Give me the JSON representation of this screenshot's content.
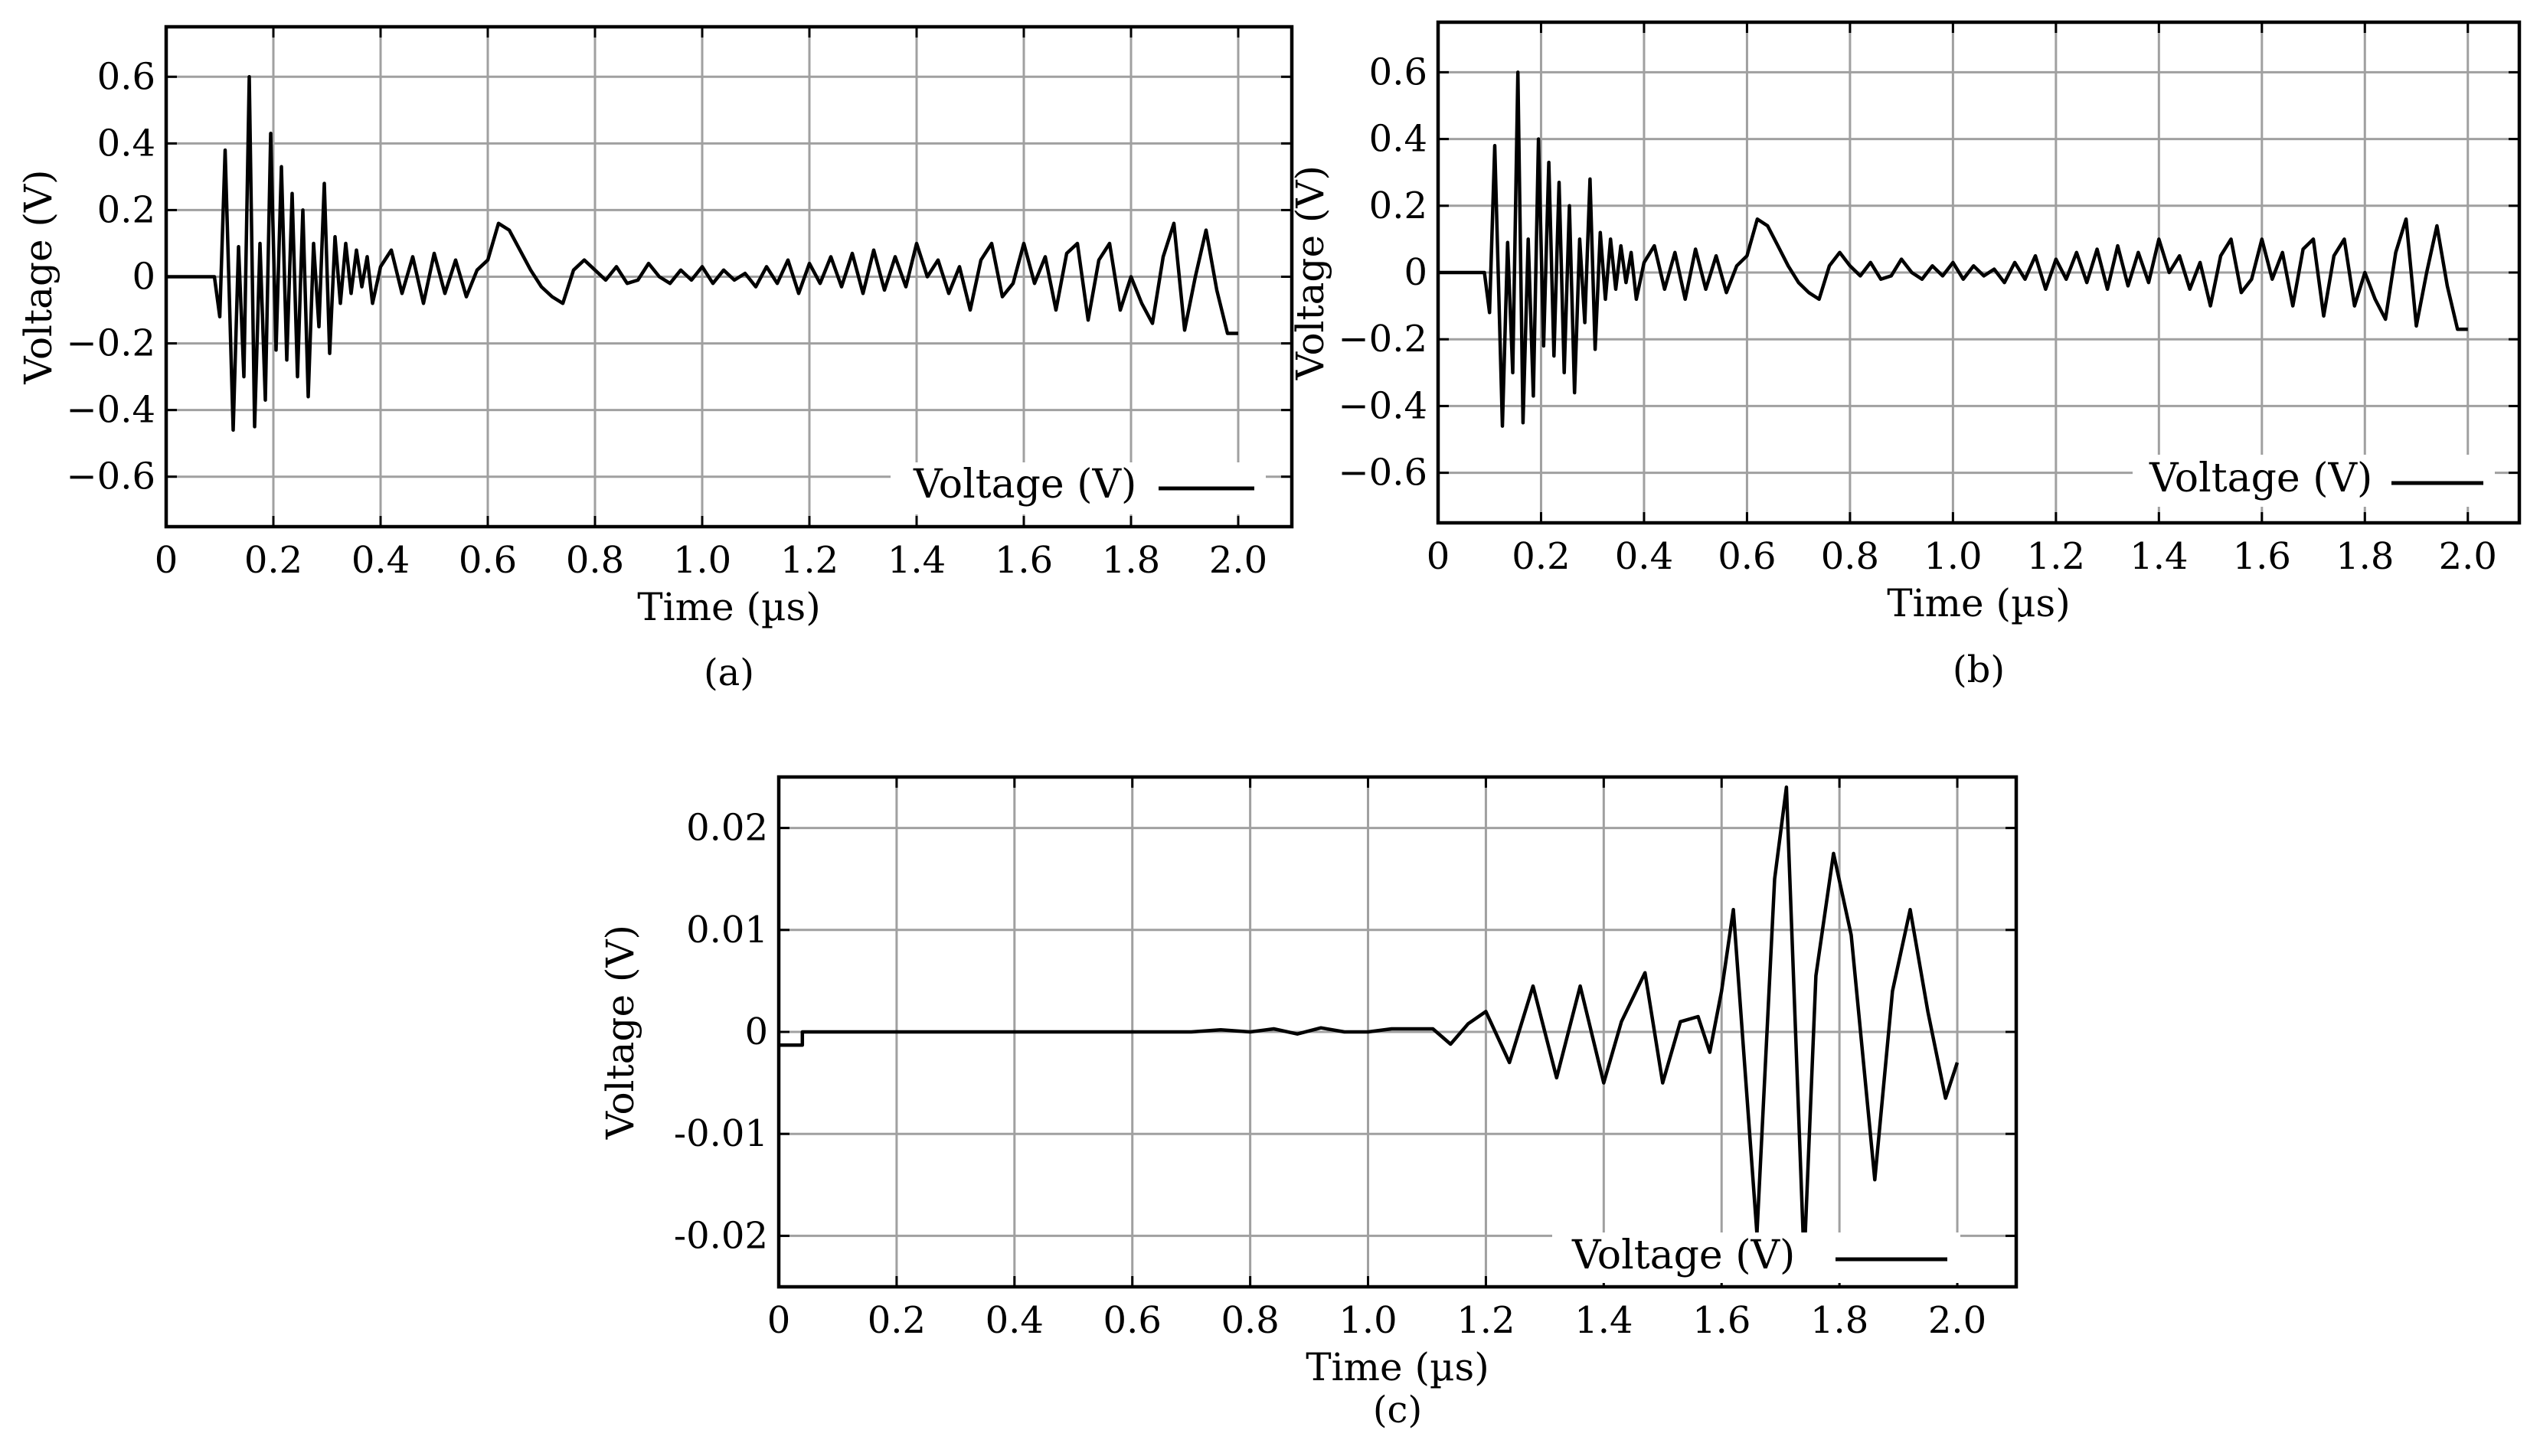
{
  "chart_data": [
    {
      "type": "line",
      "caption": "(a)",
      "xlabel": "Time (µs)",
      "ylabel": "Voltage (V)",
      "xlim": [
        0,
        2.1
      ],
      "ylim": [
        -0.75,
        0.75
      ],
      "xticks": [
        0,
        0.2,
        0.4,
        0.6,
        0.8,
        1.0,
        1.2,
        1.4,
        1.6,
        1.8,
        2.0
      ],
      "xtick_labels": [
        "0",
        "0.2",
        "0.4",
        "0.6",
        "0.8",
        "1.0",
        "1.2",
        "1.4",
        "1.6",
        "1.8",
        "2.0"
      ],
      "yticks": [
        -0.6,
        -0.4,
        -0.2,
        0,
        0.2,
        0.4,
        0.6
      ],
      "ytick_labels": [
        "−0.6",
        "−0.4",
        "−0.2",
        "0",
        "0.2",
        "0.4",
        "0.6"
      ],
      "grid": true,
      "legend_position": "lower-right",
      "series": [
        {
          "name": "Voltage (V)",
          "x": [
            0,
            0.09,
            0.1,
            0.11,
            0.125,
            0.135,
            0.145,
            0.155,
            0.165,
            0.175,
            0.185,
            0.195,
            0.205,
            0.215,
            0.225,
            0.235,
            0.245,
            0.255,
            0.265,
            0.275,
            0.285,
            0.295,
            0.305,
            0.315,
            0.325,
            0.335,
            0.345,
            0.355,
            0.365,
            0.375,
            0.385,
            0.4,
            0.42,
            0.44,
            0.46,
            0.48,
            0.5,
            0.52,
            0.54,
            0.56,
            0.58,
            0.6,
            0.62,
            0.64,
            0.66,
            0.68,
            0.7,
            0.72,
            0.74,
            0.76,
            0.78,
            0.8,
            0.82,
            0.84,
            0.86,
            0.88,
            0.9,
            0.92,
            0.94,
            0.96,
            0.98,
            1.0,
            1.02,
            1.04,
            1.06,
            1.08,
            1.1,
            1.12,
            1.14,
            1.16,
            1.18,
            1.2,
            1.22,
            1.24,
            1.26,
            1.28,
            1.3,
            1.32,
            1.34,
            1.36,
            1.38,
            1.4,
            1.42,
            1.44,
            1.46,
            1.48,
            1.5,
            1.52,
            1.54,
            1.56,
            1.58,
            1.6,
            1.62,
            1.64,
            1.66,
            1.68,
            1.7,
            1.72,
            1.74,
            1.76,
            1.78,
            1.8,
            1.82,
            1.84,
            1.86,
            1.88,
            1.9,
            1.92,
            1.94,
            1.96,
            1.98,
            2.0
          ],
          "y": [
            0,
            0,
            -0.12,
            0.38,
            -0.46,
            0.09,
            -0.3,
            0.6,
            -0.45,
            0.1,
            -0.37,
            0.43,
            -0.22,
            0.33,
            -0.25,
            0.25,
            -0.3,
            0.2,
            -0.36,
            0.1,
            -0.15,
            0.28,
            -0.23,
            0.12,
            -0.08,
            0.1,
            -0.05,
            0.08,
            -0.03,
            0.06,
            -0.08,
            0.03,
            0.08,
            -0.05,
            0.06,
            -0.08,
            0.07,
            -0.05,
            0.05,
            -0.06,
            0.02,
            0.05,
            0.16,
            0.14,
            0.08,
            0.02,
            -0.03,
            -0.06,
            -0.08,
            0.02,
            0.05,
            0.02,
            -0.01,
            0.03,
            -0.02,
            -0.01,
            0.04,
            0.0,
            -0.02,
            0.02,
            -0.01,
            0.03,
            -0.02,
            0.02,
            -0.01,
            0.01,
            -0.03,
            0.03,
            -0.02,
            0.05,
            -0.05,
            0.04,
            -0.02,
            0.06,
            -0.03,
            0.07,
            -0.05,
            0.08,
            -0.04,
            0.06,
            -0.03,
            0.1,
            0.0,
            0.05,
            -0.05,
            0.03,
            -0.1,
            0.05,
            0.1,
            -0.06,
            -0.02,
            0.1,
            -0.02,
            0.06,
            -0.1,
            0.07,
            0.1,
            -0.13,
            0.05,
            0.1,
            -0.1,
            0.0,
            -0.08,
            -0.14,
            0.06,
            0.16,
            -0.16,
            0.0,
            0.14,
            -0.04,
            -0.17,
            -0.17
          ]
        }
      ]
    },
    {
      "type": "line",
      "caption": "(b)",
      "xlabel": "Time (µs)",
      "ylabel": "Voltage (V)",
      "xlim": [
        0,
        2.1
      ],
      "ylim": [
        -0.75,
        0.75
      ],
      "xticks": [
        0,
        0.2,
        0.4,
        0.6,
        0.8,
        1.0,
        1.2,
        1.4,
        1.6,
        1.8,
        2.0
      ],
      "xtick_labels": [
        "0",
        "0.2",
        "0.4",
        "0.6",
        "0.8",
        "1.0",
        "1.2",
        "1.4",
        "1.6",
        "1.8",
        "2.0"
      ],
      "yticks": [
        -0.6,
        -0.4,
        -0.2,
        0,
        0.2,
        0.4,
        0.6
      ],
      "ytick_labels": [
        "−0.6",
        "−0.4",
        "−0.2",
        "0",
        "0.2",
        "0.4",
        "0.6"
      ],
      "grid": true,
      "legend_position": "lower-right",
      "series": [
        {
          "name": "Voltage (V)",
          "x": [
            0,
            0.09,
            0.1,
            0.11,
            0.125,
            0.135,
            0.145,
            0.155,
            0.165,
            0.175,
            0.185,
            0.195,
            0.205,
            0.215,
            0.225,
            0.235,
            0.245,
            0.255,
            0.265,
            0.275,
            0.285,
            0.295,
            0.305,
            0.315,
            0.325,
            0.335,
            0.345,
            0.355,
            0.365,
            0.375,
            0.385,
            0.4,
            0.42,
            0.44,
            0.46,
            0.48,
            0.5,
            0.52,
            0.54,
            0.56,
            0.58,
            0.6,
            0.62,
            0.64,
            0.66,
            0.68,
            0.7,
            0.72,
            0.74,
            0.76,
            0.78,
            0.8,
            0.82,
            0.84,
            0.86,
            0.88,
            0.9,
            0.92,
            0.94,
            0.96,
            0.98,
            1.0,
            1.02,
            1.04,
            1.06,
            1.08,
            1.1,
            1.12,
            1.14,
            1.16,
            1.18,
            1.2,
            1.22,
            1.24,
            1.26,
            1.28,
            1.3,
            1.32,
            1.34,
            1.36,
            1.38,
            1.4,
            1.42,
            1.44,
            1.46,
            1.48,
            1.5,
            1.52,
            1.54,
            1.56,
            1.58,
            1.6,
            1.62,
            1.64,
            1.66,
            1.68,
            1.7,
            1.72,
            1.74,
            1.76,
            1.78,
            1.8,
            1.82,
            1.84,
            1.86,
            1.88,
            1.9,
            1.92,
            1.94,
            1.96,
            1.98,
            2.0
          ],
          "y": [
            0,
            0,
            -0.12,
            0.38,
            -0.46,
            0.09,
            -0.3,
            0.6,
            -0.45,
            0.1,
            -0.37,
            0.4,
            -0.22,
            0.33,
            -0.25,
            0.27,
            -0.3,
            0.2,
            -0.36,
            0.1,
            -0.15,
            0.28,
            -0.23,
            0.12,
            -0.08,
            0.1,
            -0.05,
            0.08,
            -0.03,
            0.06,
            -0.08,
            0.03,
            0.08,
            -0.05,
            0.06,
            -0.08,
            0.07,
            -0.05,
            0.05,
            -0.06,
            0.02,
            0.05,
            0.16,
            0.14,
            0.08,
            0.02,
            -0.03,
            -0.06,
            -0.08,
            0.02,
            0.06,
            0.02,
            -0.01,
            0.03,
            -0.02,
            -0.01,
            0.04,
            0.0,
            -0.02,
            0.02,
            -0.01,
            0.03,
            -0.02,
            0.02,
            -0.01,
            0.01,
            -0.03,
            0.03,
            -0.02,
            0.05,
            -0.05,
            0.04,
            -0.02,
            0.06,
            -0.03,
            0.07,
            -0.05,
            0.08,
            -0.04,
            0.06,
            -0.03,
            0.1,
            0.0,
            0.05,
            -0.05,
            0.03,
            -0.1,
            0.05,
            0.1,
            -0.06,
            -0.02,
            0.1,
            -0.02,
            0.06,
            -0.1,
            0.07,
            0.1,
            -0.13,
            0.05,
            0.1,
            -0.1,
            0.0,
            -0.08,
            -0.14,
            0.06,
            0.16,
            -0.16,
            0.0,
            0.14,
            -0.04,
            -0.17,
            -0.17
          ]
        }
      ]
    },
    {
      "type": "line",
      "caption": "(c)",
      "xlabel": "Time (µs)",
      "ylabel": "Voltage (V)",
      "xlim": [
        0,
        2.1
      ],
      "ylim": [
        -0.025,
        0.025
      ],
      "xticks": [
        0,
        0.2,
        0.4,
        0.6,
        0.8,
        1.0,
        1.2,
        1.4,
        1.6,
        1.8,
        2.0
      ],
      "xtick_labels": [
        "0",
        "0.2",
        "0.4",
        "0.6",
        "0.8",
        "1.0",
        "1.2",
        "1.4",
        "1.6",
        "1.8",
        "2.0"
      ],
      "yticks": [
        -0.02,
        -0.01,
        0,
        0.01,
        0.02
      ],
      "ytick_labels": [
        "-0.02",
        "-0.01",
        "0",
        "0.01",
        "0.02"
      ],
      "grid": true,
      "legend_position": "lower-right",
      "series": [
        {
          "name": "Voltage (V)",
          "x": [
            0,
            0.04,
            0.04,
            0.2,
            0.4,
            0.6,
            0.7,
            0.75,
            0.8,
            0.84,
            0.88,
            0.92,
            0.96,
            1.0,
            1.04,
            1.08,
            1.11,
            1.14,
            1.17,
            1.2,
            1.24,
            1.28,
            1.32,
            1.36,
            1.4,
            1.43,
            1.47,
            1.5,
            1.53,
            1.56,
            1.58,
            1.6,
            1.62,
            1.66,
            1.69,
            1.71,
            1.74,
            1.76,
            1.79,
            1.82,
            1.86,
            1.89,
            1.92,
            1.95,
            1.98,
            2.0
          ],
          "y": [
            -0.0013,
            -0.0013,
            0.0,
            0.0,
            0.0,
            0.0,
            0.0,
            0.0002,
            0.0,
            0.0003,
            -0.0002,
            0.0004,
            0.0,
            0.0,
            0.0003,
            0.0003,
            0.0003,
            -0.0012,
            0.0008,
            0.002,
            -0.003,
            0.0045,
            -0.0045,
            0.0045,
            -0.005,
            0.001,
            0.0058,
            -0.005,
            0.001,
            0.0015,
            -0.002,
            0.004,
            0.012,
            -0.0198,
            0.015,
            0.024,
            -0.0225,
            0.0055,
            0.0175,
            0.0095,
            -0.0145,
            0.004,
            0.012,
            0.002,
            -0.0065,
            -0.003
          ]
        }
      ]
    }
  ]
}
